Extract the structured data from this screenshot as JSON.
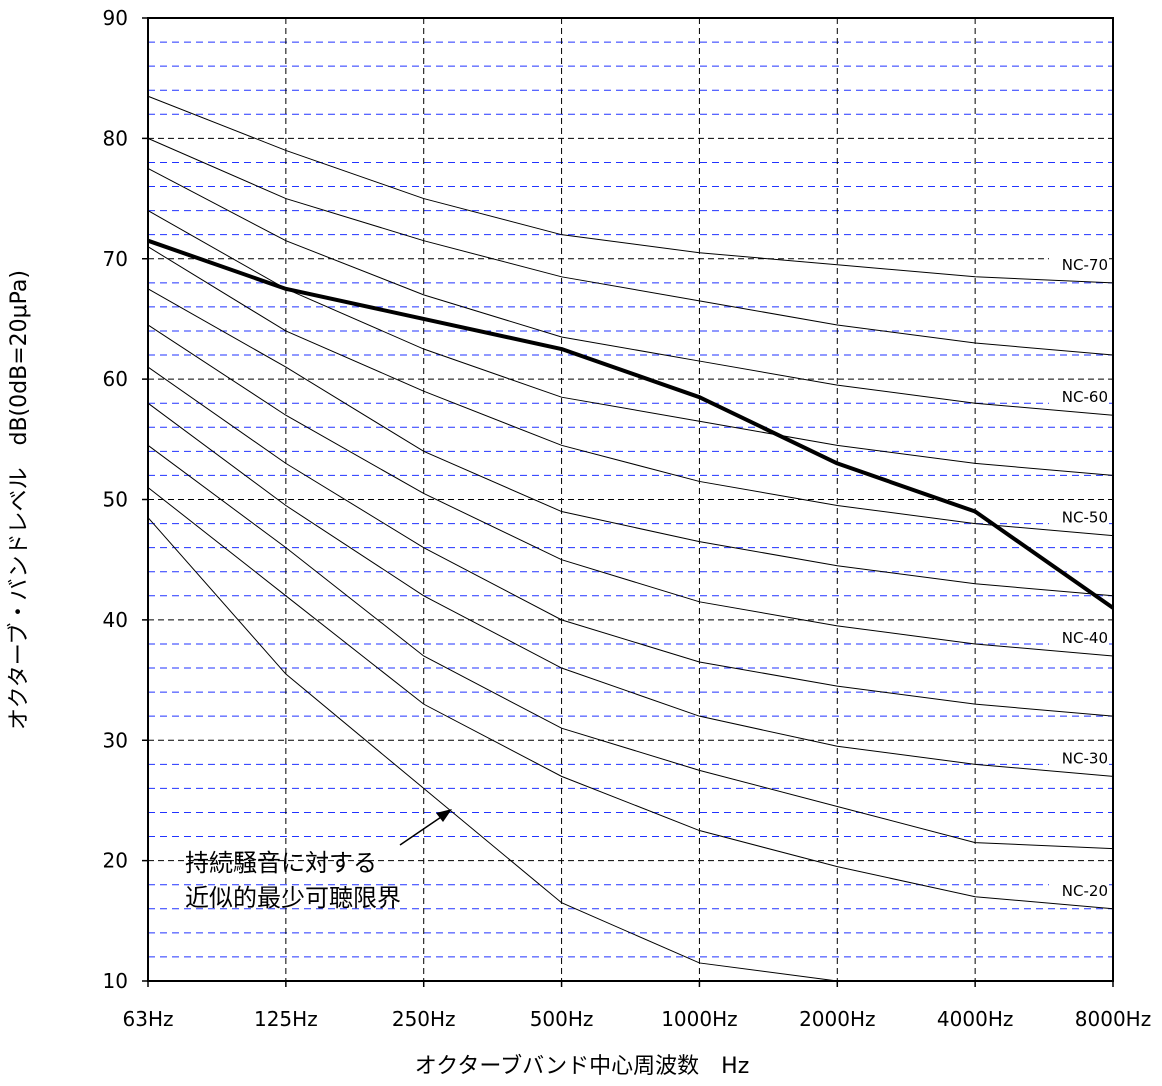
{
  "chart_data": {
    "type": "line",
    "xlabel": "オクターブバンド中心周波数　Hz",
    "ylabel": "オクターブ・バンドレベル　dB(0dB=20μPa)",
    "categories": [
      "63Hz",
      "125Hz",
      "250Hz",
      "500Hz",
      "1000Hz",
      "2000Hz",
      "4000Hz",
      "8000Hz"
    ],
    "ylim": [
      10,
      90
    ],
    "yticks": [
      10,
      20,
      30,
      40,
      50,
      60,
      70,
      80,
      90
    ],
    "grid": {
      "major": true,
      "minor_y_step": 2
    },
    "nc_curves": [
      {
        "name": "NC-70",
        "values": [
          83.5,
          79,
          75,
          72,
          70.5,
          69.5,
          68.5,
          68
        ]
      },
      {
        "name": "",
        "values": [
          80,
          75,
          71.5,
          68.5,
          66.5,
          64.5,
          63,
          62
        ]
      },
      {
        "name": "NC-60",
        "values": [
          77.5,
          71.5,
          67,
          63.5,
          61.5,
          59.5,
          58,
          57
        ]
      },
      {
        "name": "",
        "values": [
          74,
          67.5,
          62.5,
          58.5,
          56.5,
          54.5,
          53,
          52
        ]
      },
      {
        "name": "NC-50",
        "values": [
          71,
          64,
          59,
          54.5,
          51.5,
          49.5,
          48,
          47
        ]
      },
      {
        "name": "",
        "values": [
          67.5,
          61,
          54,
          49,
          46.5,
          44.5,
          43,
          42
        ]
      },
      {
        "name": "NC-40",
        "values": [
          64.5,
          57,
          50.5,
          45,
          41.5,
          39.5,
          38,
          37
        ]
      },
      {
        "name": "",
        "values": [
          61,
          53,
          46,
          40,
          36.5,
          34.5,
          33,
          32
        ]
      },
      {
        "name": "NC-30",
        "values": [
          58,
          49.5,
          42,
          36,
          32,
          29.5,
          28,
          27
        ]
      },
      {
        "name": "",
        "values": [
          54.5,
          46,
          37,
          31,
          27.5,
          24.5,
          21.5,
          21
        ]
      },
      {
        "name": "NC-20",
        "values": [
          51,
          42,
          33,
          27,
          22.5,
          19.5,
          17,
          16
        ]
      }
    ],
    "threshold": {
      "values": [
        48.5,
        35.5,
        26,
        16.5,
        11.5,
        10
      ]
    },
    "measured": {
      "values": [
        71.5,
        67.5,
        65,
        62.5,
        58.5,
        53,
        49,
        41
      ]
    },
    "annotation": {
      "lines": [
        "持続騒音に対する",
        "近似的最少可聴限界"
      ]
    },
    "colors": {
      "minor_grid": "#2233ff",
      "major_grid": "#000000",
      "curve": "#000000"
    }
  }
}
